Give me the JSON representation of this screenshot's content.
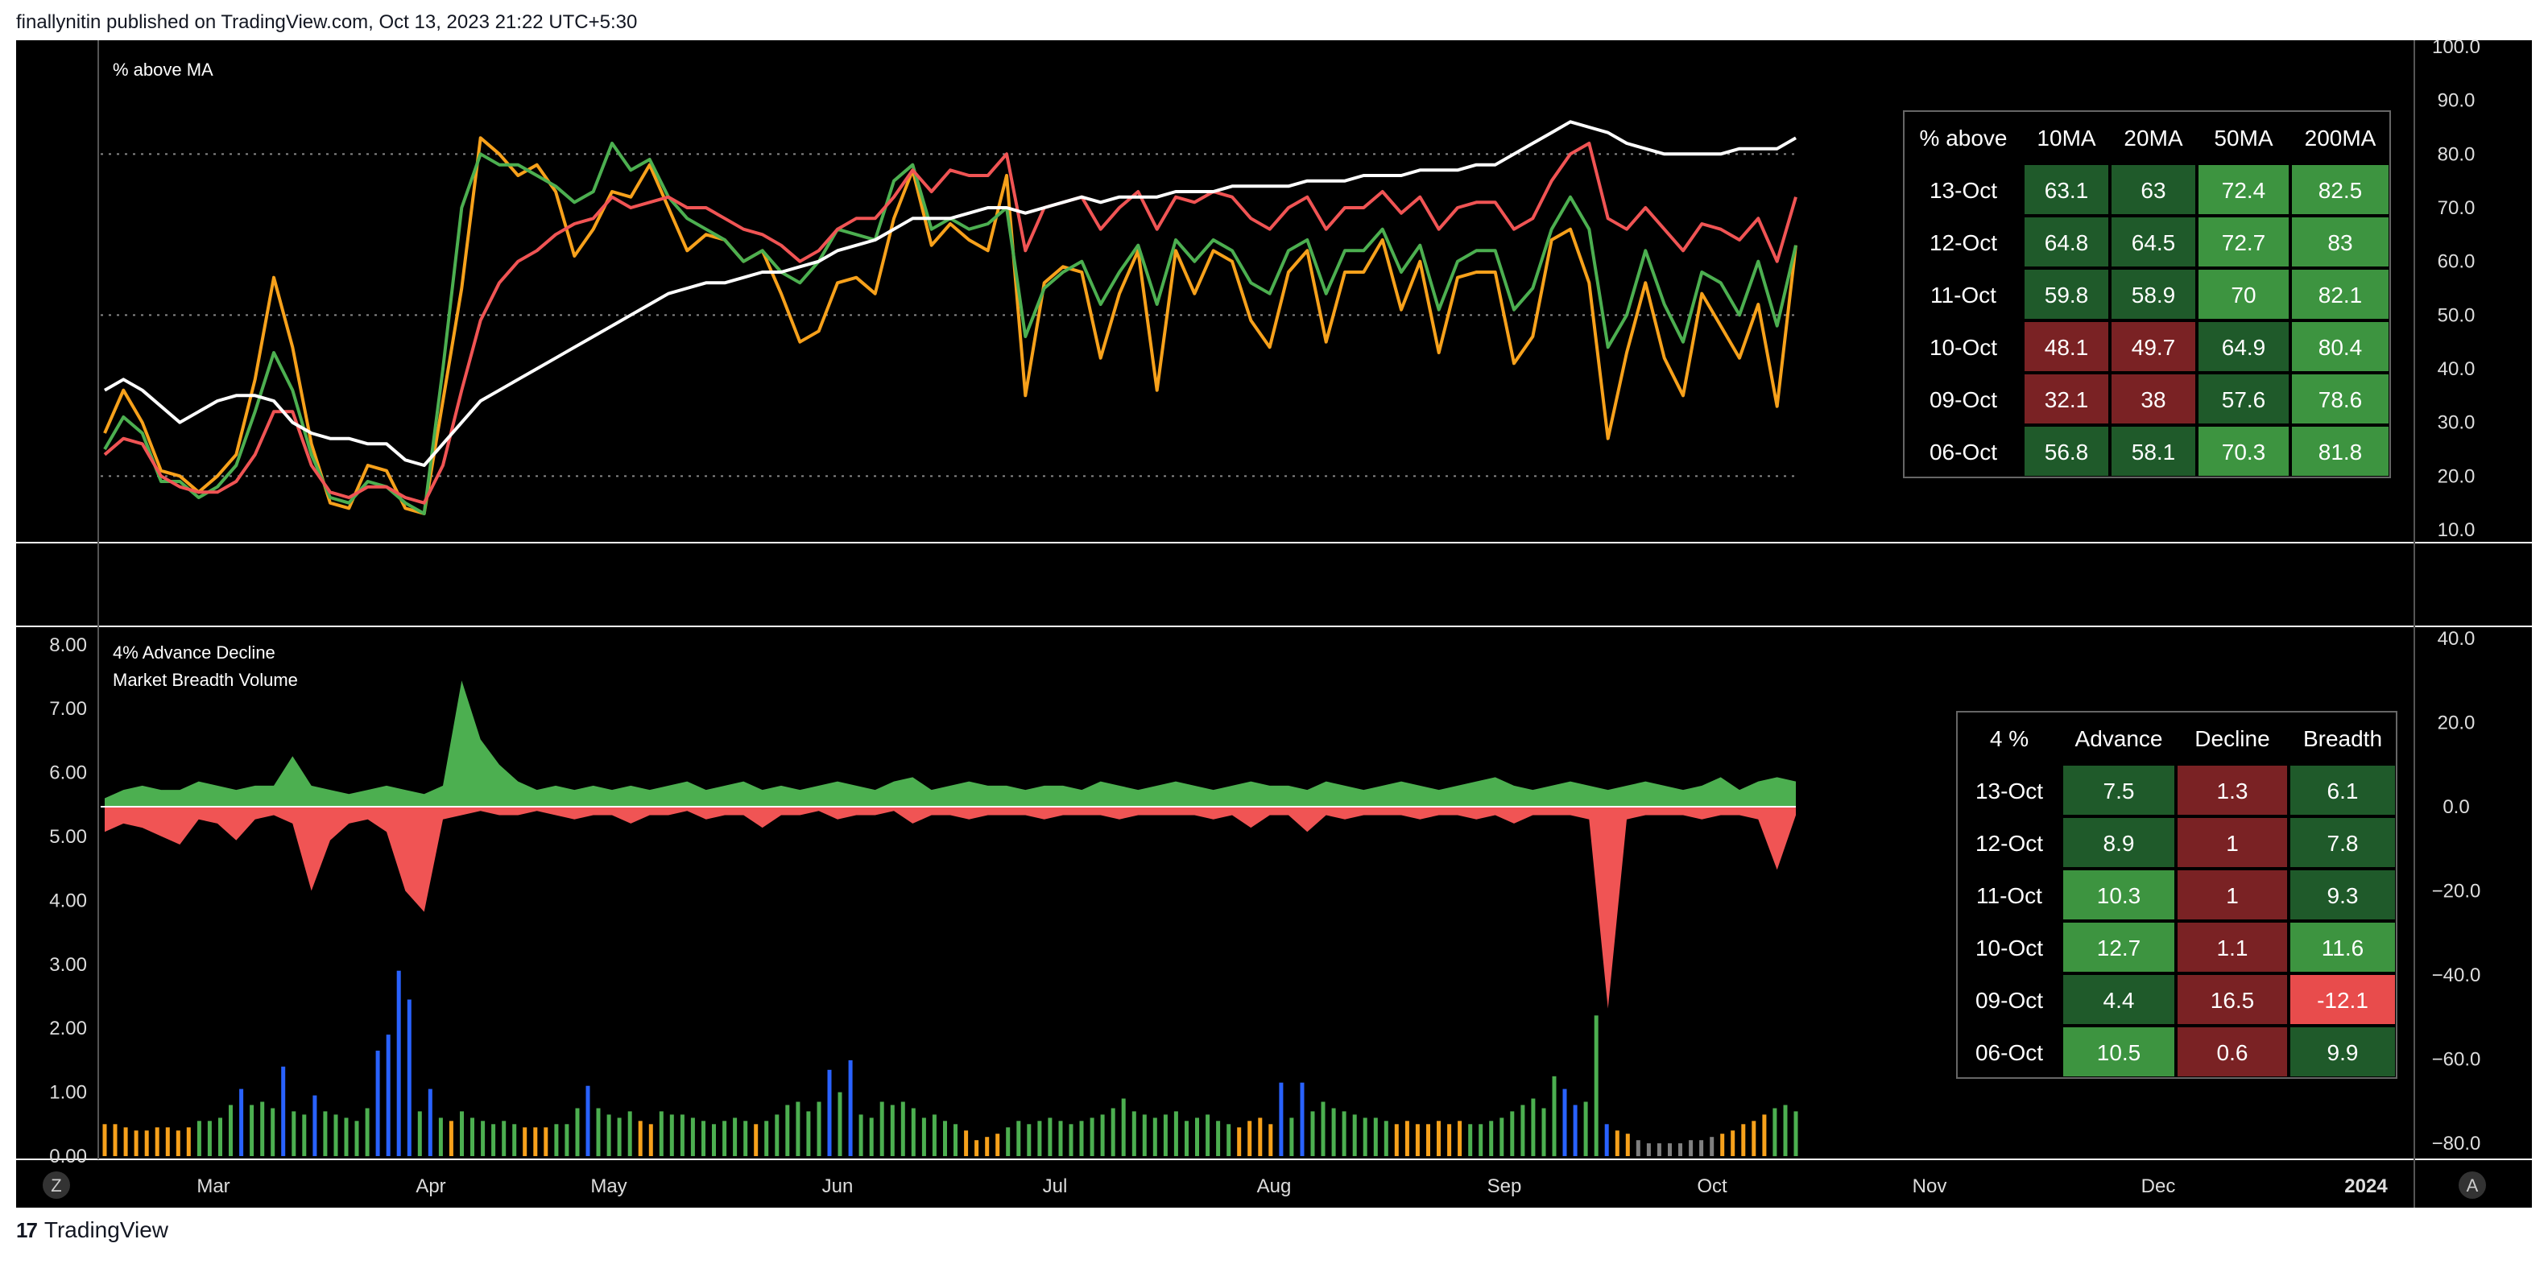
{
  "header": {
    "attribution": "finallynitin published on TradingView.com, Oct 13, 2023 21:22 UTC+5:30"
  },
  "footer": {
    "brand": "TradingView"
  },
  "buttons": {
    "z": "Z",
    "a": "A"
  },
  "colors": {
    "background": "#000000",
    "orange": "#f7a11b",
    "green": "#4caf50",
    "red": "#f05454",
    "white": "#ffffff",
    "blue": "#2962ff",
    "gray": "#808080",
    "cell_dark_green": "#1f5a2a",
    "cell_green": "#3d9440",
    "cell_dark_red": "#7a2224",
    "cell_red": "#e84c4c"
  },
  "chart_data": [
    {
      "type": "line",
      "title": "% above MA",
      "ylim": [
        10,
        100
      ],
      "y_ticks": [
        "100.0",
        "90.0",
        "80.0",
        "70.0",
        "60.0",
        "50.0",
        "40.0",
        "30.0",
        "20.0",
        "10.0"
      ],
      "x_ticks": [
        "Mar",
        "Apr",
        "May",
        "Jun",
        "Jul",
        "Aug",
        "Sep",
        "Oct",
        "Nov",
        "Dec",
        "2024"
      ],
      "reference_lines": [
        80,
        50,
        20
      ],
      "series": [
        {
          "color": "orange",
          "values": [
            28,
            36,
            30,
            21,
            20,
            17,
            20,
            24,
            38,
            57,
            44,
            26,
            15,
            14,
            22,
            21,
            14,
            13,
            34,
            55,
            83,
            80,
            76,
            78,
            73,
            61,
            66,
            73,
            72,
            78,
            70,
            62,
            65,
            64,
            60,
            62,
            54,
            45,
            47,
            56,
            57,
            54,
            68,
            77,
            63,
            67,
            64,
            62,
            76,
            35,
            56,
            59,
            58,
            42,
            54,
            62,
            36,
            62,
            54,
            62,
            60,
            49,
            44,
            58,
            62,
            45,
            58,
            58,
            64,
            51,
            60,
            43,
            57,
            58,
            58,
            41,
            46,
            64,
            66,
            56,
            27,
            43,
            56,
            42,
            35,
            54,
            48,
            42,
            52,
            33,
            63
          ]
        },
        {
          "color": "green",
          "values": [
            25,
            31,
            28,
            19,
            19,
            16,
            18,
            22,
            32,
            43,
            36,
            24,
            16,
            15,
            19,
            18,
            15,
            13,
            40,
            70,
            80,
            78,
            78,
            76,
            74,
            71,
            73,
            82,
            77,
            79,
            72,
            68,
            66,
            64,
            60,
            62,
            58,
            56,
            60,
            66,
            65,
            64,
            75,
            78,
            66,
            68,
            66,
            67,
            70,
            46,
            55,
            58,
            60,
            52,
            58,
            63,
            52,
            64,
            60,
            64,
            62,
            56,
            54,
            62,
            64,
            54,
            62,
            62,
            66,
            58,
            63,
            51,
            60,
            62,
            62,
            51,
            55,
            66,
            72,
            66,
            44,
            50,
            62,
            52,
            45,
            58,
            56,
            50,
            60,
            48,
            63
          ]
        },
        {
          "color": "red",
          "values": [
            24,
            27,
            26,
            20,
            18,
            17,
            17,
            19,
            24,
            32,
            32,
            22,
            17,
            16,
            18,
            18,
            16,
            15,
            22,
            36,
            49,
            56,
            60,
            62,
            65,
            67,
            68,
            72,
            70,
            71,
            72,
            70,
            70,
            68,
            66,
            65,
            63,
            60,
            62,
            66,
            68,
            68,
            72,
            77,
            73,
            77,
            76,
            76,
            80,
            62,
            70,
            71,
            72,
            66,
            70,
            73,
            66,
            72,
            71,
            73,
            72,
            68,
            66,
            70,
            72,
            66,
            70,
            70,
            73,
            69,
            72,
            66,
            70,
            71,
            71,
            66,
            68,
            75,
            80,
            82,
            68,
            66,
            70,
            66,
            62,
            67,
            66,
            64,
            68,
            60,
            72
          ]
        },
        {
          "color": "white",
          "values": [
            36,
            38,
            36,
            33,
            30,
            32,
            34,
            35,
            35,
            34,
            30,
            28,
            27,
            27,
            26,
            26,
            23,
            22,
            26,
            30,
            34,
            36,
            38,
            40,
            42,
            44,
            46,
            48,
            50,
            52,
            54,
            55,
            56,
            56,
            57,
            58,
            58,
            59,
            60,
            62,
            63,
            64,
            66,
            68,
            68,
            68,
            69,
            70,
            70,
            69,
            70,
            71,
            72,
            71,
            72,
            72,
            72,
            73,
            73,
            73,
            74,
            74,
            74,
            74,
            75,
            75,
            75,
            76,
            76,
            76,
            77,
            77,
            77,
            78,
            78,
            80,
            82,
            84,
            86,
            85,
            84,
            82,
            81,
            80,
            80,
            80,
            80,
            81,
            81,
            81,
            83
          ]
        }
      ],
      "table": {
        "headers": [
          "% above",
          "10MA",
          "20MA",
          "50MA",
          "200MA"
        ],
        "rows": [
          {
            "date": "13-Oct",
            "v10": "63.1",
            "v20": "63",
            "v50": "72.4",
            "v200": "82.5"
          },
          {
            "date": "12-Oct",
            "v10": "64.8",
            "v20": "64.5",
            "v50": "72.7",
            "v200": "83"
          },
          {
            "date": "11-Oct",
            "v10": "59.8",
            "v20": "58.9",
            "v50": "70",
            "v200": "82.1"
          },
          {
            "date": "10-Oct",
            "v10": "48.1",
            "v20": "49.7",
            "v50": "64.9",
            "v200": "80.4"
          },
          {
            "date": "09-Oct",
            "v10": "32.1",
            "v20": "38",
            "v50": "57.6",
            "v200": "78.6"
          },
          {
            "date": "06-Oct",
            "v10": "56.8",
            "v20": "58.1",
            "v50": "70.3",
            "v200": "81.8"
          }
        ]
      }
    },
    {
      "type": "area",
      "title": "4% Advance Decline",
      "ylim": [
        -80,
        40
      ],
      "y_ticks": [
        "40.0",
        "20.0",
        "0.0",
        "−20.0",
        "−40.0",
        "−60.0",
        "−80.0"
      ],
      "advance": [
        2,
        4,
        5,
        4,
        4,
        6,
        5,
        4,
        5,
        5,
        12,
        5,
        4,
        3,
        4,
        5,
        4,
        3,
        5,
        30,
        16,
        10,
        6,
        4,
        5,
        4,
        5,
        4,
        5,
        4,
        5,
        6,
        4,
        5,
        6,
        4,
        5,
        4,
        5,
        6,
        5,
        4,
        6,
        7,
        4,
        5,
        6,
        5,
        5,
        4,
        5,
        5,
        4,
        6,
        5,
        4,
        5,
        6,
        5,
        4,
        5,
        6,
        5,
        5,
        4,
        6,
        5,
        4,
        5,
        6,
        5,
        4,
        5,
        6,
        7,
        5,
        4,
        5,
        6,
        5,
        4,
        5,
        6,
        5,
        4,
        5,
        7,
        4,
        6,
        7,
        6
      ],
      "decline": [
        -6,
        -4,
        -5,
        -7,
        -9,
        -3,
        -4,
        -8,
        -3,
        -2,
        -4,
        -20,
        -8,
        -4,
        -3,
        -6,
        -20,
        -25,
        -3,
        -2,
        -1,
        -2,
        -2,
        -1,
        -2,
        -3,
        -2,
        -2,
        -4,
        -2,
        -2,
        -1,
        -3,
        -2,
        -2,
        -5,
        -2,
        -2,
        -1,
        -3,
        -2,
        -2,
        -1,
        -4,
        -2,
        -2,
        -3,
        -2,
        -2,
        -2,
        -3,
        -2,
        -2,
        -2,
        -3,
        -2,
        -2,
        -2,
        -2,
        -3,
        -2,
        -5,
        -2,
        -2,
        -6,
        -2,
        -3,
        -2,
        -2,
        -2,
        -3,
        -2,
        -2,
        -3,
        -2,
        -4,
        -2,
        -2,
        -2,
        -3,
        -48,
        -3,
        -2,
        -2,
        -2,
        -3,
        -2,
        -2,
        -3,
        -15,
        -2
      ],
      "table": {
        "headers": [
          "4 %",
          "Advance",
          "Decline",
          "Breadth"
        ],
        "rows": [
          {
            "date": "13-Oct",
            "adv": "7.5",
            "dec": "1.3",
            "br": "6.1"
          },
          {
            "date": "12-Oct",
            "adv": "8.9",
            "dec": "1",
            "br": "7.8"
          },
          {
            "date": "11-Oct",
            "adv": "10.3",
            "dec": "1",
            "br": "9.3"
          },
          {
            "date": "10-Oct",
            "adv": "12.7",
            "dec": "1.1",
            "br": "11.6"
          },
          {
            "date": "09-Oct",
            "adv": "4.4",
            "dec": "16.5",
            "br": "-12.1"
          },
          {
            "date": "06-Oct",
            "adv": "10.5",
            "dec": "0.6",
            "br": "9.9"
          }
        ]
      }
    },
    {
      "type": "bar",
      "title": "Market Breadth Volume",
      "ylim": [
        0,
        8
      ],
      "y_ticks": [
        "8.00",
        "7.00",
        "6.00",
        "5.00",
        "4.00",
        "3.00",
        "2.00",
        "1.00",
        "0.00"
      ],
      "values": [
        0.5,
        0.5,
        0.45,
        0.4,
        0.4,
        0.45,
        0.45,
        0.4,
        0.45,
        0.55,
        0.55,
        0.6,
        0.8,
        1.05,
        0.8,
        0.85,
        0.75,
        1.4,
        0.7,
        0.65,
        0.95,
        0.7,
        0.65,
        0.6,
        0.55,
        0.75,
        1.65,
        1.9,
        2.9,
        2.45,
        0.7,
        1.05,
        0.6,
        0.55,
        0.7,
        0.6,
        0.55,
        0.5,
        0.55,
        0.5,
        0.45,
        0.45,
        0.45,
        0.5,
        0.5,
        0.75,
        1.1,
        0.75,
        0.65,
        0.6,
        0.7,
        0.55,
        0.5,
        0.7,
        0.65,
        0.65,
        0.6,
        0.55,
        0.5,
        0.55,
        0.6,
        0.55,
        0.5,
        0.55,
        0.65,
        0.8,
        0.85,
        0.7,
        0.85,
        1.35,
        1.0,
        1.5,
        0.65,
        0.6,
        0.85,
        0.8,
        0.85,
        0.75,
        0.6,
        0.65,
        0.55,
        0.5,
        0.4,
        0.25,
        0.3,
        0.35,
        0.45,
        0.55,
        0.5,
        0.55,
        0.6,
        0.55,
        0.5,
        0.55,
        0.6,
        0.65,
        0.75,
        0.9,
        0.7,
        0.65,
        0.6,
        0.65,
        0.7,
        0.55,
        0.6,
        0.65,
        0.55,
        0.5,
        0.45,
        0.55,
        0.6,
        0.5,
        1.15,
        0.6,
        1.15,
        0.7,
        0.85,
        0.75,
        0.7,
        0.65,
        0.6,
        0.6,
        0.55,
        0.5,
        0.55,
        0.5,
        0.5,
        0.55,
        0.5,
        0.55,
        0.5,
        0.5,
        0.55,
        0.6,
        0.7,
        0.8,
        0.9,
        0.75,
        1.25,
        1.05,
        0.8,
        0.85,
        2.2,
        0.5,
        0.4,
        0.35,
        0.25,
        0.2,
        0.2,
        0.2,
        0.2,
        0.25,
        0.25,
        0.3,
        0.35,
        0.4,
        0.5,
        0.55,
        0.65,
        0.75,
        0.8,
        0.7
      ],
      "bar_colors": [
        "orange",
        "orange",
        "orange",
        "orange",
        "orange",
        "orange",
        "orange",
        "orange",
        "orange",
        "green",
        "green",
        "green",
        "green",
        "blue",
        "green",
        "green",
        "green",
        "blue",
        "green",
        "green",
        "blue",
        "green",
        "green",
        "green",
        "green",
        "green",
        "blue",
        "blue",
        "blue",
        "blue",
        "green",
        "blue",
        "green",
        "orange",
        "green",
        "green",
        "green",
        "green",
        "green",
        "green",
        "orange",
        "orange",
        "orange",
        "green",
        "green",
        "green",
        "blue",
        "green",
        "green",
        "green",
        "green",
        "orange",
        "orange",
        "green",
        "green",
        "green",
        "green",
        "green",
        "green",
        "green",
        "green",
        "green",
        "orange",
        "green",
        "green",
        "green",
        "green",
        "green",
        "green",
        "blue",
        "green",
        "blue",
        "green",
        "green",
        "green",
        "green",
        "green",
        "green",
        "green",
        "green",
        "green",
        "green",
        "orange",
        "orange",
        "orange",
        "orange",
        "green",
        "green",
        "green",
        "green",
        "green",
        "green",
        "green",
        "green",
        "green",
        "green",
        "green",
        "green",
        "green",
        "green",
        "green",
        "green",
        "green",
        "green",
        "green",
        "green",
        "green",
        "green",
        "orange",
        "orange",
        "orange",
        "orange",
        "blue",
        "green",
        "blue",
        "green",
        "green",
        "green",
        "green",
        "green",
        "green",
        "green",
        "green",
        "orange",
        "orange",
        "orange",
        "orange",
        "orange",
        "orange",
        "orange",
        "green",
        "green",
        "green",
        "green",
        "green",
        "green",
        "green",
        "green",
        "green",
        "blue",
        "blue",
        "green",
        "green",
        "blue",
        "orange",
        "orange",
        "gray",
        "gray",
        "gray",
        "gray",
        "gray",
        "gray",
        "gray",
        "gray",
        "orange",
        "orange",
        "orange",
        "orange",
        "orange",
        "green",
        "green",
        "green",
        "green",
        "green"
      ]
    }
  ]
}
